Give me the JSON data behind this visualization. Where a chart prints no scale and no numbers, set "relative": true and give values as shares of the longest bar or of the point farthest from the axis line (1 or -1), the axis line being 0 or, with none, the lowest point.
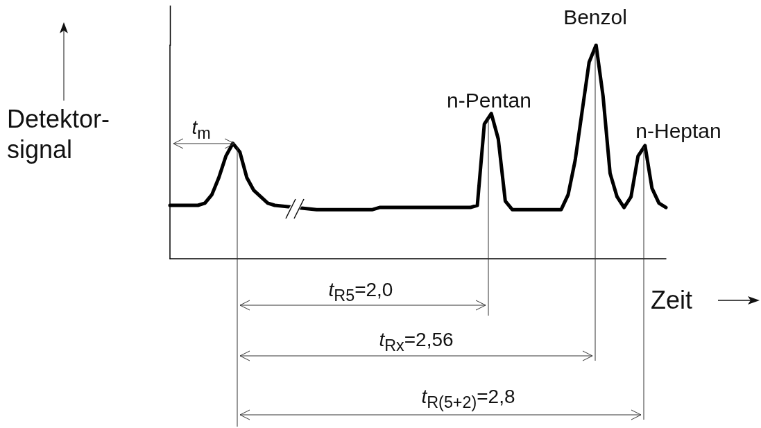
{
  "chart_data": {
    "type": "line",
    "relative": true,
    "xlabel": "Zeit",
    "ylabel": "Detektor-\nsignal",
    "categories": [
      null,
      null,
      null,
      null,
      null,
      null,
      null,
      null,
      null,
      null,
      null,
      null,
      null,
      null,
      null,
      null,
      null,
      null,
      null,
      null,
      null,
      null,
      null,
      null,
      null,
      null,
      null,
      null,
      null,
      null,
      null,
      null,
      null,
      null,
      null,
      null,
      null,
      null,
      null,
      null,
      null,
      null,
      null,
      null,
      null,
      null,
      null,
      null,
      null,
      null,
      null,
      null,
      null,
      null,
      null,
      null,
      null,
      null,
      null,
      null,
      null,
      null,
      null,
      null,
      null,
      null,
      null,
      null,
      null,
      null,
      null,
      null
    ],
    "series": [
      {
        "color": "#000000",
        "values": [
          0.25,
          0.25,
          0.25,
          0.25,
          0.25,
          0.26,
          0.3,
          0.38,
          0.48,
          0.54,
          0.5,
          0.38,
          0.32,
          0.29,
          0.26,
          0.25,
          null,
          null,
          null,
          null,
          null,
          0.23,
          0.23,
          0.23,
          0.23,
          0.23,
          0.23,
          0.23,
          0.23,
          0.23,
          0.24,
          0.24,
          0.24,
          0.24,
          0.24,
          0.24,
          0.24,
          0.24,
          0.24,
          0.24,
          0.24,
          0.24,
          0.24,
          0.24,
          0.25,
          0.63,
          0.68,
          0.56,
          0.27,
          0.23,
          0.23,
          0.23,
          0.23,
          0.23,
          0.23,
          0.23,
          0.23,
          0.3,
          0.46,
          0.69,
          0.92,
          1,
          0.76,
          0.4,
          0.29,
          0.24,
          0.29,
          0.48,
          0.53,
          0.33,
          0.26,
          0.24
        ]
      }
    ],
    "annotations": [
      "t$_{m}$",
      "n-Pentan",
      "Benzol",
      "n-Heptan",
      "t$_{R5}$=2,0",
      "t$_{Rx}$=2,56",
      "t$_{R(5+2)}$=2,8"
    ]
  }
}
